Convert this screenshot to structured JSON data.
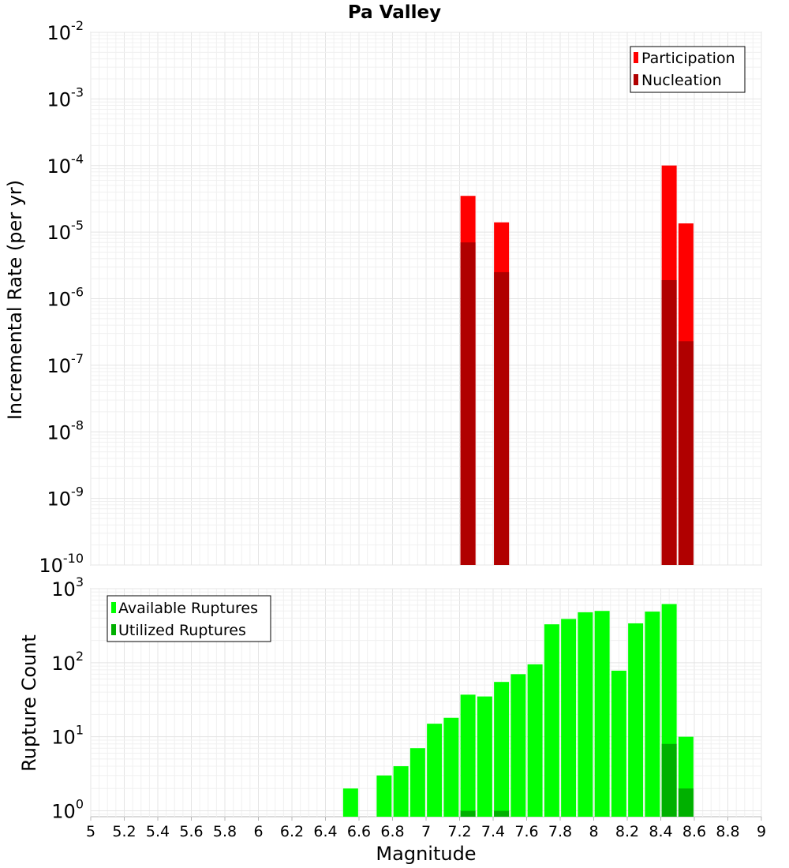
{
  "chart_data": {
    "title": "Pa Valley",
    "xlabel": "Magnitude",
    "xlim": [
      5,
      9
    ],
    "xticks": [
      "5",
      "5.2",
      "5.4",
      "5.6",
      "5.8",
      "6",
      "6.2",
      "6.4",
      "6.6",
      "6.8",
      "7",
      "7.2",
      "7.4",
      "7.6",
      "7.8",
      "8",
      "8.2",
      "8.4",
      "8.6",
      "8.8",
      "9"
    ],
    "grid": true,
    "colors": {
      "participation": "#ff0000",
      "nucleation": "#b00000",
      "available": "#00ff00",
      "utilized": "#00b000"
    },
    "panels": [
      {
        "type": "bar",
        "ylabel": "Incremental Rate (per yr)",
        "yscale": "log",
        "ylim_exp": [
          -10,
          -2
        ],
        "ytick_exponents": [
          "-10",
          "-9",
          "-8",
          "-7",
          "-6",
          "-5",
          "-4",
          "-3",
          "-2"
        ],
        "legend_position": "top-right",
        "series": [
          {
            "name": "Participation",
            "color_key": "participation",
            "x": [
              7.25,
              7.45,
              8.45,
              8.55
            ],
            "values": [
              3.5e-05,
              1.4e-05,
              0.0001,
              1.35e-05
            ]
          },
          {
            "name": "Nucleation",
            "color_key": "nucleation",
            "x": [
              7.25,
              7.45,
              8.45,
              8.55
            ],
            "values": [
              7e-06,
              2.5e-06,
              1.9e-06,
              2.3e-07
            ]
          }
        ]
      },
      {
        "type": "bar",
        "ylabel": "Rupture Count",
        "yscale": "log",
        "ylim_exp": [
          -0.08,
          3
        ],
        "ytick_exponents": [
          "0",
          "1",
          "2",
          "3"
        ],
        "legend_position": "top-left",
        "series": [
          {
            "name": "Available Ruptures",
            "color_key": "available",
            "x": [
              6.55,
              6.75,
              6.85,
              6.95,
              7.05,
              7.15,
              7.25,
              7.35,
              7.45,
              7.55,
              7.65,
              7.75,
              7.85,
              7.95,
              8.05,
              8.15,
              8.25,
              8.35,
              8.45,
              8.55
            ],
            "values": [
              2,
              3,
              4,
              7,
              15,
              18,
              37,
              35,
              55,
              70,
              95,
              330,
              390,
              480,
              500,
              78,
              340,
              490,
              620,
              10
            ]
          },
          {
            "name": "Utilized Ruptures",
            "color_key": "utilized",
            "x": [
              7.25,
              7.45,
              8.45,
              8.55
            ],
            "values": [
              1,
              1,
              8,
              2
            ]
          }
        ]
      }
    ]
  }
}
